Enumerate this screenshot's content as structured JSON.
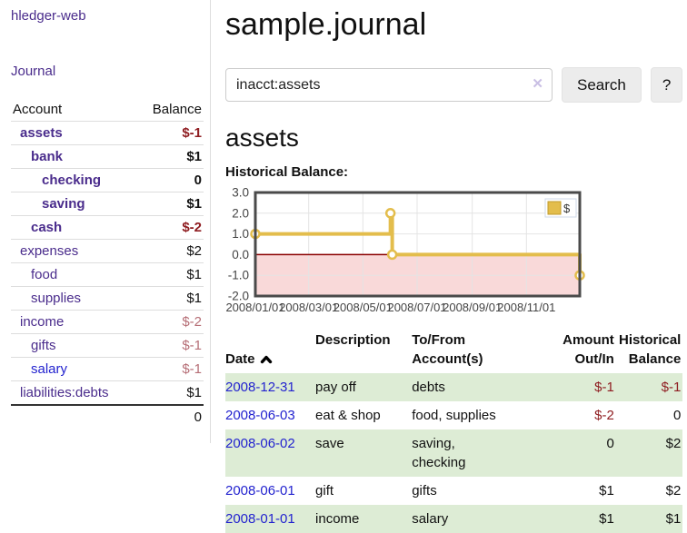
{
  "app": {
    "title": "hledger-web"
  },
  "sidebar": {
    "journal_link": "Journal",
    "accounts": {
      "header_account": "Account",
      "header_balance": "Balance",
      "rows": [
        {
          "name": "assets",
          "balance": "$-1"
        },
        {
          "name": "bank",
          "balance": "$1"
        },
        {
          "name": "checking",
          "balance": "0"
        },
        {
          "name": "saving",
          "balance": "$1"
        },
        {
          "name": "cash",
          "balance": "$-2"
        },
        {
          "name": "expenses",
          "balance": "$2"
        },
        {
          "name": "food",
          "balance": "$1"
        },
        {
          "name": "supplies",
          "balance": "$1"
        },
        {
          "name": "income",
          "balance": "$-2"
        },
        {
          "name": "gifts",
          "balance": "$-1"
        },
        {
          "name": "salary",
          "balance": "$-1"
        },
        {
          "name": "liabilities:debts",
          "balance": "$1"
        }
      ],
      "total": "0"
    }
  },
  "header": {
    "title": "sample.journal"
  },
  "search": {
    "value": "inacct:assets",
    "clear_icon": "✕",
    "search_button": "Search",
    "help_button": "?"
  },
  "register": {
    "account_heading": "assets",
    "chart_title": "Historical Balance:",
    "table": {
      "headers": {
        "date": "Date",
        "description": "Description",
        "accounts": "To/From\nAccount(s)",
        "amount": "Amount\nOut/In",
        "balance": "Historical\nBalance"
      },
      "rows": [
        {
          "date": "2008-12-31",
          "description": "pay off",
          "accounts": "debts",
          "amount": "$-1",
          "balance": "$-1"
        },
        {
          "date": "2008-06-03",
          "description": "eat & shop",
          "accounts": "food, supplies",
          "amount": "$-2",
          "balance": "0"
        },
        {
          "date": "2008-06-02",
          "description": "save",
          "accounts": "saving,\nchecking",
          "amount": "0",
          "balance": "$2"
        },
        {
          "date": "2008-06-01",
          "description": "gift",
          "accounts": "gifts",
          "amount": "$1",
          "balance": "$2"
        },
        {
          "date": "2008-01-01",
          "description": "income",
          "accounts": "salary",
          "amount": "$1",
          "balance": "$1"
        }
      ]
    }
  },
  "chart_data": {
    "type": "line",
    "title": "Historical Balance",
    "step": true,
    "series": [
      {
        "name": "$",
        "points": [
          [
            "2008-01-01",
            1
          ],
          [
            "2008-06-01",
            2
          ],
          [
            "2008-06-03",
            0
          ],
          [
            "2008-12-31",
            -1
          ]
        ]
      }
    ],
    "xrange": [
      "2008-01-01",
      "2008-12-31"
    ],
    "ylim": [
      -2,
      3
    ],
    "yticks": [
      3.0,
      2.0,
      1.0,
      0.0,
      -1.0,
      -2.0
    ],
    "xticks": [
      "2008/01/01",
      "2008/03/01",
      "2008/05/01",
      "2008/07/01",
      "2008/09/01",
      "2008/11/01"
    ],
    "grid": true,
    "legend": {
      "label": "$",
      "position": "top-right"
    },
    "colors": {
      "line": "#e3bd4c",
      "marker_fill": "#ffffff",
      "negative_region": "#f9d9d9",
      "zero_line": "#8b0000",
      "grid": "#e4e4e4",
      "border": "#4a4a4a"
    }
  }
}
